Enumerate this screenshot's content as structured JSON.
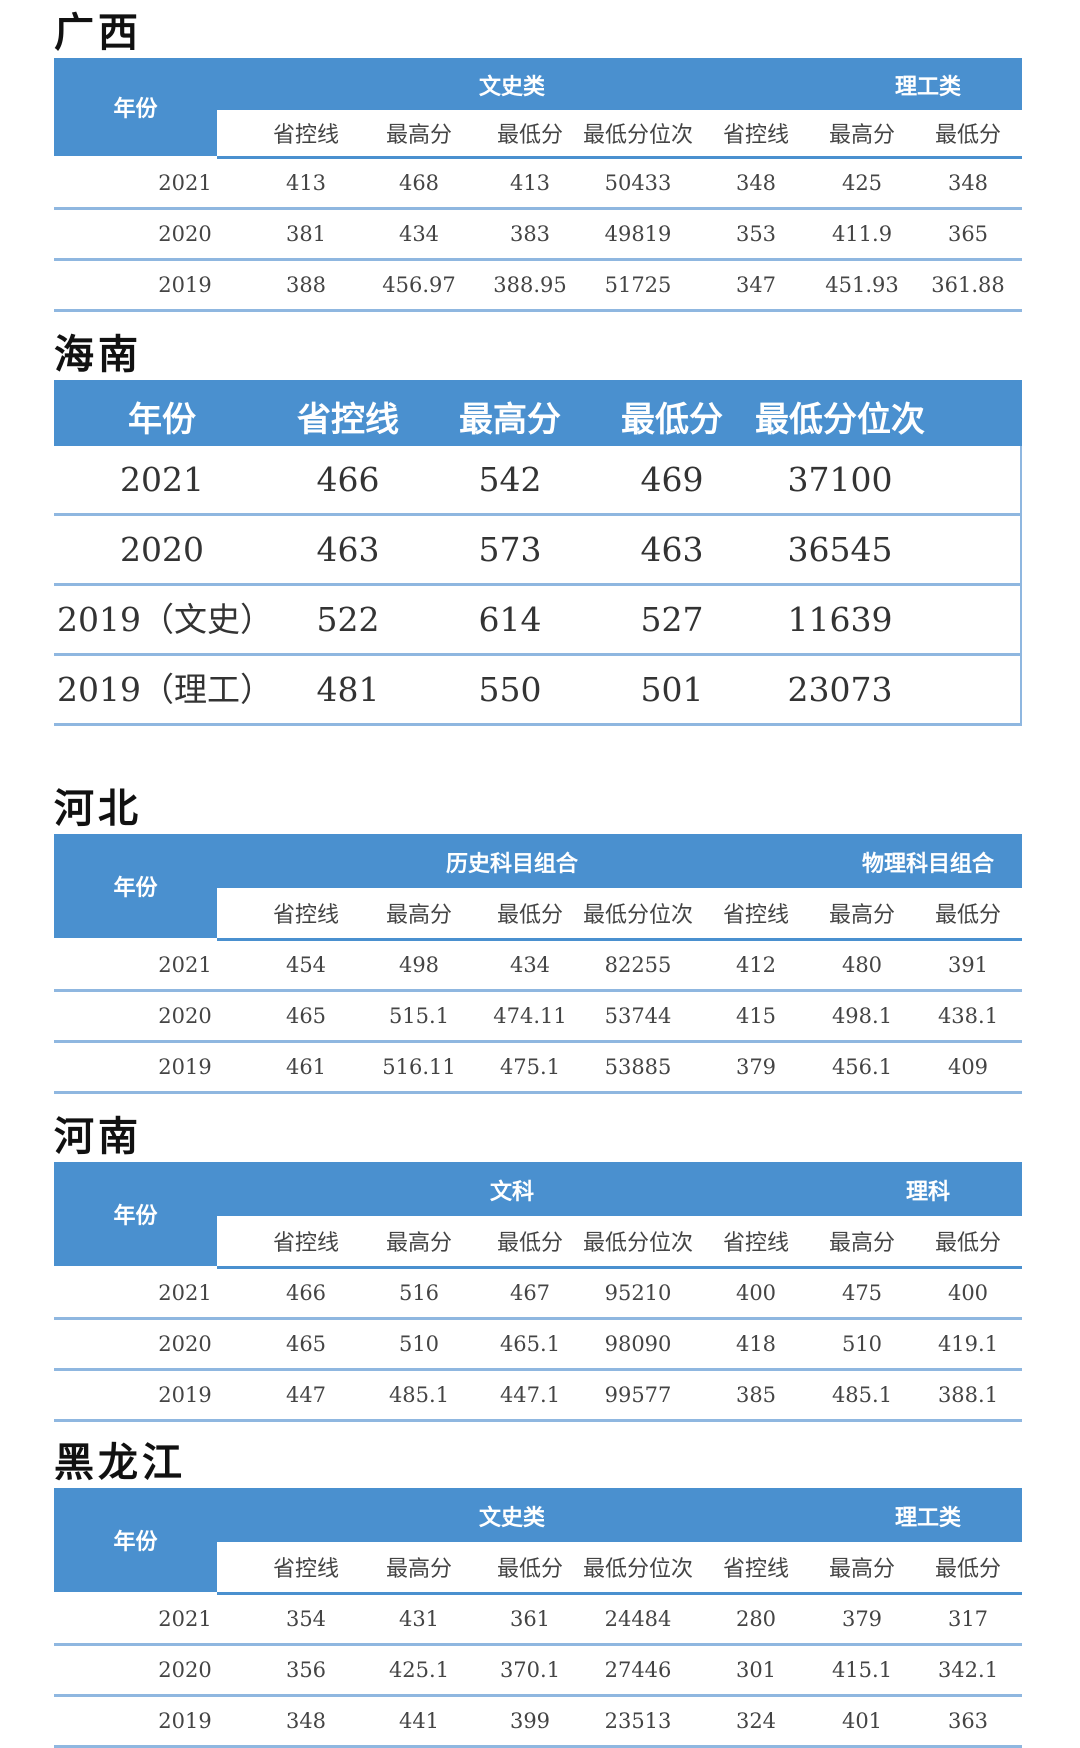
{
  "sections": {
    "guangxi": {
      "title": "广西",
      "year_label": "年份",
      "group1": "文史类",
      "group2": "理工类",
      "cols": [
        "省控线",
        "最高分",
        "最低分",
        "最低分位次",
        "省控线",
        "最高分",
        "最低分"
      ],
      "rows": [
        [
          "2021",
          "413",
          "468",
          "413",
          "50433",
          "348",
          "425",
          "348"
        ],
        [
          "2020",
          "381",
          "434",
          "383",
          "49819",
          "353",
          "411.9",
          "365"
        ],
        [
          "2019",
          "388",
          "456.97",
          "388.95",
          "51725",
          "347",
          "451.93",
          "361.88"
        ]
      ]
    },
    "hainan": {
      "title": "海南",
      "cols": [
        "年份",
        "省控线",
        "最高分",
        "最低分",
        "最低分位次"
      ],
      "rows": [
        [
          "2021",
          "466",
          "542",
          "469",
          "37100"
        ],
        [
          "2020",
          "463",
          "573",
          "463",
          "36545"
        ],
        [
          "2019（文史）",
          "522",
          "614",
          "527",
          "11639"
        ],
        [
          "2019（理工）",
          "481",
          "550",
          "501",
          "23073"
        ]
      ]
    },
    "hebei": {
      "title": "河北",
      "year_label": "年份",
      "group1": "历史科目组合",
      "group2": "物理科目组合",
      "cols": [
        "省控线",
        "最高分",
        "最低分",
        "最低分位次",
        "省控线",
        "最高分",
        "最低分"
      ],
      "rows": [
        [
          "2021",
          "454",
          "498",
          "434",
          "82255",
          "412",
          "480",
          "391"
        ],
        [
          "2020",
          "465",
          "515.1",
          "474.11",
          "53744",
          "415",
          "498.1",
          "438.1"
        ],
        [
          "2019",
          "461",
          "516.11",
          "475.1",
          "53885",
          "379",
          "456.1",
          "409"
        ]
      ]
    },
    "henan": {
      "title": "河南",
      "year_label": "年份",
      "group1": "文科",
      "group2": "理科",
      "cols": [
        "省控线",
        "最高分",
        "最低分",
        "最低分位次",
        "省控线",
        "最高分",
        "最低分"
      ],
      "rows": [
        [
          "2021",
          "466",
          "516",
          "467",
          "95210",
          "400",
          "475",
          "400"
        ],
        [
          "2020",
          "465",
          "510",
          "465.1",
          "98090",
          "418",
          "510",
          "419.1"
        ],
        [
          "2019",
          "447",
          "485.1",
          "447.1",
          "99577",
          "385",
          "485.1",
          "388.1"
        ]
      ]
    },
    "heilongjiang": {
      "title": "黑龙江",
      "year_label": "年份",
      "group1": "文史类",
      "group2": "理工类",
      "cols": [
        "省控线",
        "最高分",
        "最低分",
        "最低分位次",
        "省控线",
        "最高分",
        "最低分"
      ],
      "rows": [
        [
          "2021",
          "354",
          "431",
          "361",
          "24484",
          "280",
          "379",
          "317"
        ],
        [
          "2020",
          "356",
          "425.1",
          "370.1",
          "27446",
          "301",
          "415.1",
          "342.1"
        ],
        [
          "2019",
          "348",
          "441",
          "399",
          "23513",
          "324",
          "401",
          "363"
        ]
      ]
    }
  },
  "colors": {
    "header_blue": "#4a90cf",
    "row_line": "#8fb7e0"
  }
}
